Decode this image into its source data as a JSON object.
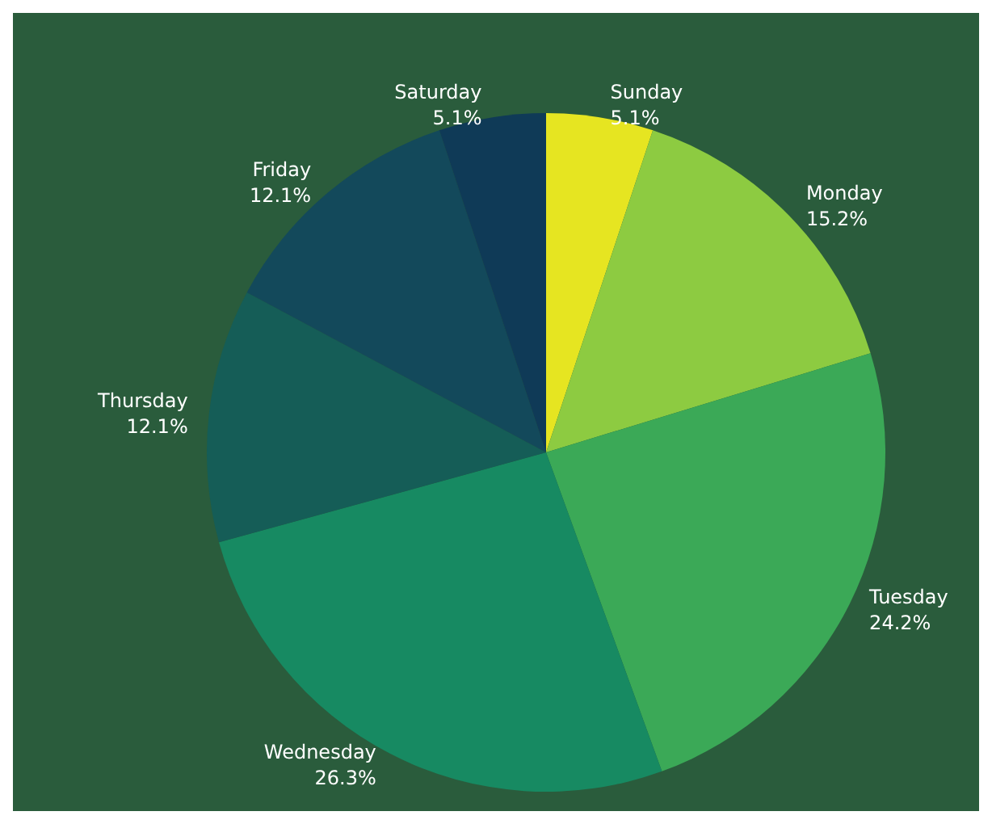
{
  "chart_data": {
    "type": "pie",
    "categories": [
      "Sunday",
      "Monday",
      "Tuesday",
      "Wednesday",
      "Thursday",
      "Friday",
      "Saturday"
    ],
    "values": [
      5.1,
      15.2,
      24.2,
      26.3,
      12.1,
      12.1,
      5.1
    ],
    "value_labels": [
      "5.1%",
      "15.2%",
      "24.2%",
      "26.3%",
      "12.1%",
      "12.1%",
      "5.1%"
    ],
    "colors": [
      "#e6e521",
      "#8dcb41",
      "#3ba957",
      "#178a62",
      "#155d57",
      "#13495b",
      "#0f3a57"
    ],
    "legend": false
  }
}
